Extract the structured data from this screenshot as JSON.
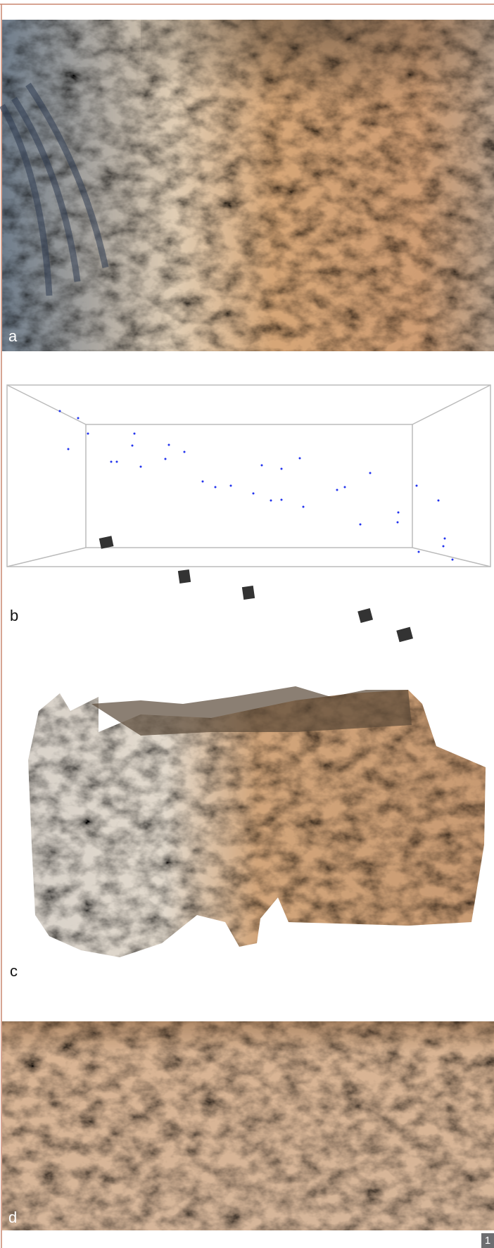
{
  "panels": [
    {
      "label": "a"
    },
    {
      "label": "b"
    },
    {
      "label": "c"
    },
    {
      "label": "d"
    }
  ],
  "figure_number": "1"
}
